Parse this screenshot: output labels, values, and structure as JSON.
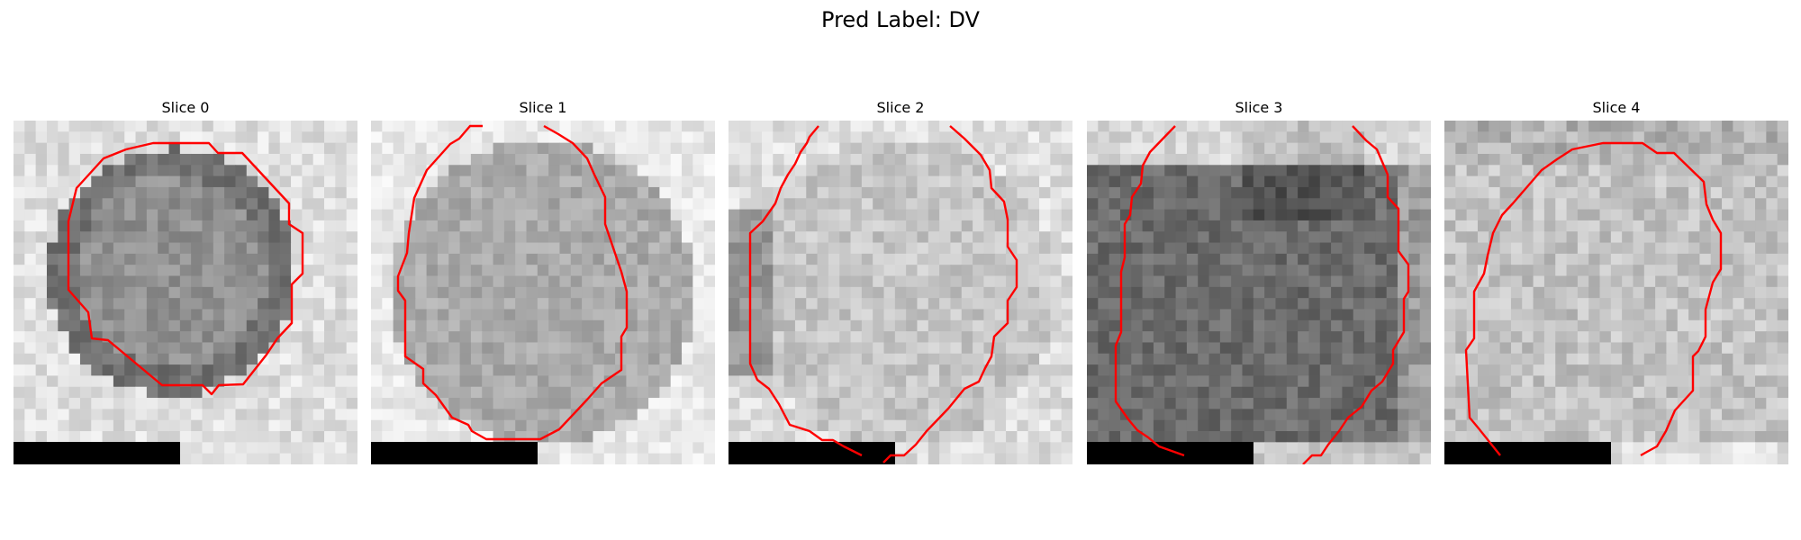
{
  "figure": {
    "title": "Pred Label: DV"
  },
  "panels": [
    {
      "title": "Slice 0",
      "tone": "dark-ring",
      "contour_color": "#ff0000",
      "scale_bar_color": "#000000"
    },
    {
      "title": "Slice 1",
      "tone": "medium",
      "contour_color": "#ff0000",
      "scale_bar_color": "#000000"
    },
    {
      "title": "Slice 2",
      "tone": "light",
      "contour_color": "#ff0000",
      "scale_bar_color": "#000000"
    },
    {
      "title": "Slice 3",
      "tone": "dark",
      "contour_color": "#ff0000",
      "scale_bar_color": "#000000"
    },
    {
      "title": "Slice 4",
      "tone": "light-medium",
      "contour_color": "#ff0000",
      "scale_bar_color": "#000000"
    }
  ]
}
